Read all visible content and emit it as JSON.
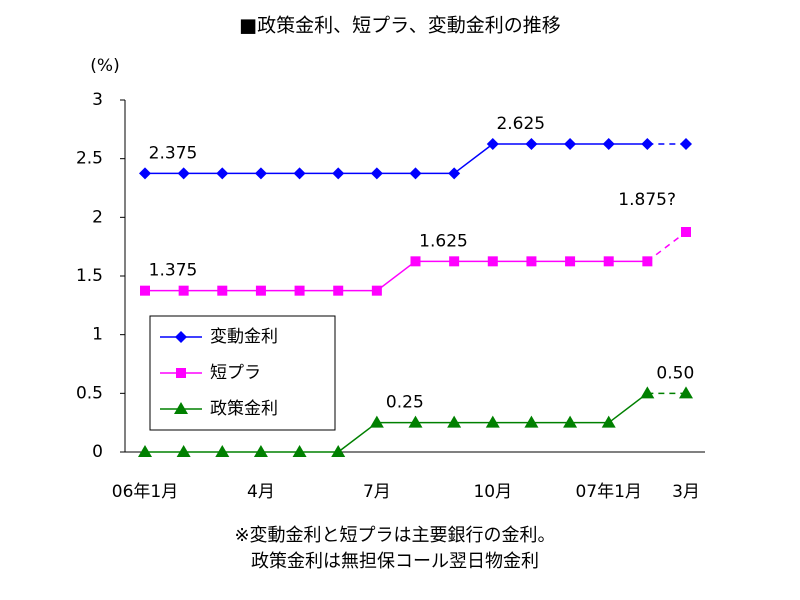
{
  "chart_data": {
    "type": "line",
    "title": "■政策金利、短プラ、変動金利の推移",
    "y_label": "(%)",
    "categories": [
      "06年1月",
      null,
      null,
      "4月",
      null,
      null,
      "7月",
      null,
      null,
      "10月",
      null,
      null,
      "07年1月",
      null,
      "3月"
    ],
    "ylim": [
      0,
      3
    ],
    "yticks": [
      0,
      0.5,
      1,
      1.5,
      2,
      2.5,
      3
    ],
    "grid": false,
    "legend": "lower-left",
    "series": [
      {
        "name": "変動金利",
        "color": "#0000ff",
        "marker": "diamond",
        "dashed_last_segment": true,
        "values": [
          2.375,
          2.375,
          2.375,
          2.375,
          2.375,
          2.375,
          2.375,
          2.375,
          2.375,
          2.625,
          2.625,
          2.625,
          2.625,
          2.625,
          2.625
        ],
        "value_labels": [
          "2.375",
          null,
          null,
          null,
          null,
          null,
          null,
          null,
          null,
          "2.625",
          null,
          null,
          null,
          null,
          null
        ]
      },
      {
        "name": "短プラ",
        "color": "#ff00ff",
        "marker": "square",
        "dashed_last_segment": true,
        "values": [
          1.375,
          1.375,
          1.375,
          1.375,
          1.375,
          1.375,
          1.375,
          1.625,
          1.625,
          1.625,
          1.625,
          1.625,
          1.625,
          1.625,
          1.875
        ],
        "value_labels": [
          "1.375",
          null,
          null,
          null,
          null,
          null,
          null,
          "1.625",
          null,
          null,
          null,
          null,
          null,
          null,
          "1.875?"
        ]
      },
      {
        "name": "政策金利",
        "color": "#008000",
        "marker": "triangle",
        "dashed_last_segment": true,
        "values": [
          0,
          0,
          0,
          0,
          0,
          0,
          0.25,
          0.25,
          0.25,
          0.25,
          0.25,
          0.25,
          0.25,
          0.5,
          0.5
        ],
        "value_labels": [
          null,
          null,
          null,
          null,
          null,
          null,
          "0.25",
          null,
          null,
          null,
          null,
          null,
          null,
          "0.50",
          null
        ]
      }
    ],
    "notes": [
      "※変動金利と短プラは主要銀行の金利。",
      "政策金利は無担保コール翌日物金利"
    ]
  }
}
